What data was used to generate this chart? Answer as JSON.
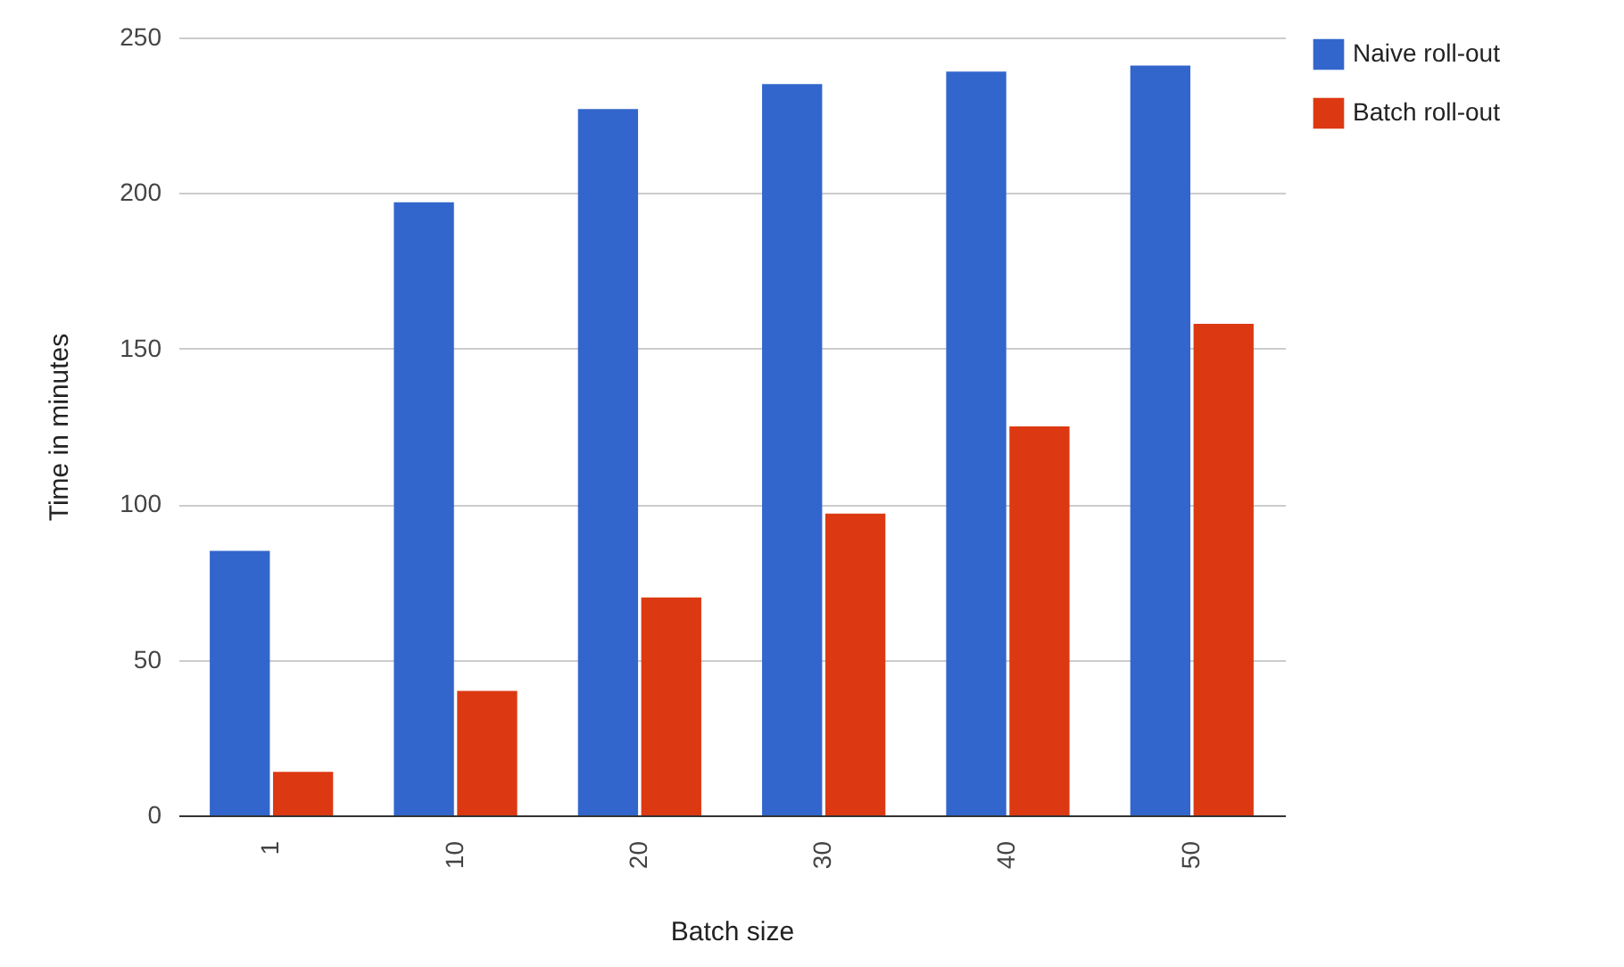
{
  "chart_data": {
    "type": "bar",
    "xlabel": "Batch size",
    "ylabel": "Time in minutes",
    "categories": [
      "1",
      "10",
      "20",
      "30",
      "40",
      "50"
    ],
    "series": [
      {
        "name": "Naive roll-out",
        "color": "#3366cc",
        "values": [
          85,
          197,
          227,
          235,
          239,
          241
        ]
      },
      {
        "name": "Batch roll-out",
        "color": "#dc3912",
        "values": [
          14,
          40,
          70,
          97,
          125,
          158
        ]
      }
    ],
    "ylim": [
      0,
      250
    ],
    "yticks": [
      0,
      50,
      100,
      150,
      200,
      250
    ],
    "grid": "y",
    "legend": "top right"
  }
}
